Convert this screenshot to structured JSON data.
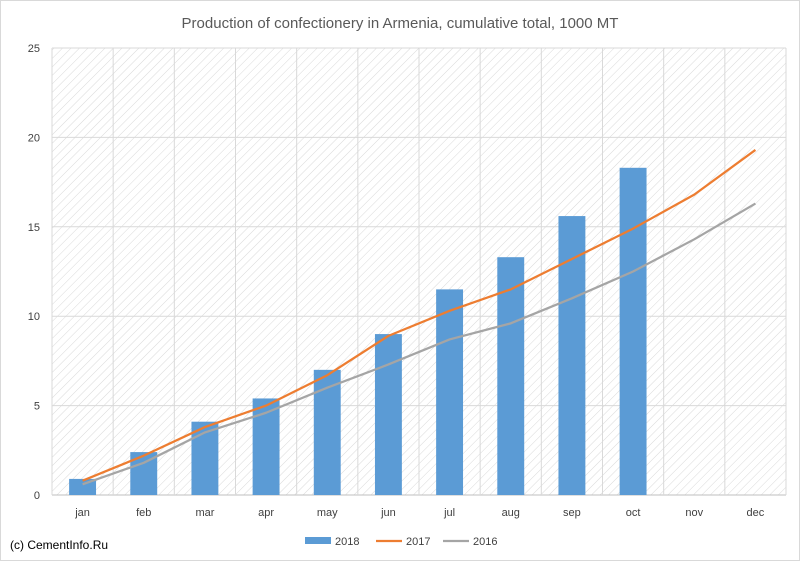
{
  "chart_data": {
    "type": "bar",
    "title": "Production of confectionery in Armenia, cumulative total, 1000 MT",
    "categories": [
      "jan",
      "feb",
      "mar",
      "apr",
      "may",
      "jun",
      "jul",
      "aug",
      "sep",
      "oct",
      "nov",
      "dec"
    ],
    "ylim": [
      0,
      25
    ],
    "yticks": [
      "0",
      "5",
      "10",
      "15",
      "20",
      "25"
    ],
    "grid": true,
    "legend_position": "bottom",
    "series": [
      {
        "name": "2018",
        "kind": "bar",
        "color": "#5B9BD5",
        "values": [
          0.9,
          2.4,
          4.1,
          5.4,
          7.0,
          9.0,
          11.5,
          13.3,
          15.6,
          18.3,
          null,
          null
        ]
      },
      {
        "name": "2017",
        "kind": "line",
        "color": "#ED7D31",
        "values": [
          0.8,
          2.2,
          3.8,
          5.0,
          6.7,
          8.9,
          10.3,
          11.5,
          13.2,
          14.9,
          16.8,
          19.3
        ]
      },
      {
        "name": "2016",
        "kind": "line",
        "color": "#A5A5A5",
        "values": [
          0.6,
          1.8,
          3.5,
          4.6,
          6.0,
          7.3,
          8.7,
          9.6,
          11.0,
          12.5,
          14.3,
          16.3
        ]
      }
    ]
  },
  "footer": {
    "credit": "(c) CementInfo.Ru"
  }
}
